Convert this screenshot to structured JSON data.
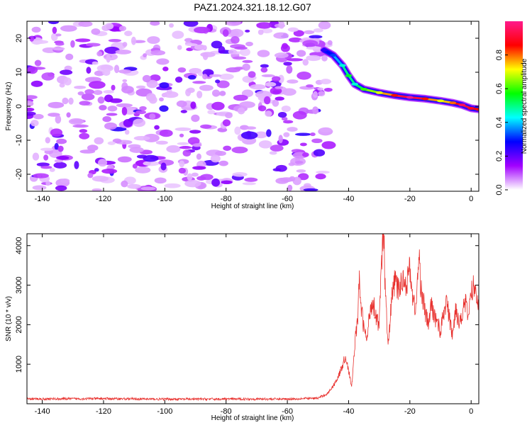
{
  "title": "PAZ1.2024.321.18.12.G07",
  "chart_data": [
    {
      "type": "heatmap",
      "xlabel": "Height of straight line (km)",
      "ylabel": "Frequency (Hz)",
      "xlim": [
        -145,
        2.5
      ],
      "ylim": [
        -25,
        25
      ],
      "xticks": [
        -140,
        -120,
        -100,
        -80,
        -60,
        -40,
        -20,
        0
      ],
      "yticks": [
        -20,
        -10,
        0,
        10,
        20
      ],
      "colorbar": {
        "label": "Normalized spectral amplitude",
        "range": [
          0.0,
          1.0
        ],
        "ticks": [
          0.0,
          0.2,
          0.4,
          0.6,
          0.8
        ],
        "colors": [
          "#ffffff",
          "#a200ff",
          "#0000ff",
          "#00ffff",
          "#00ff00",
          "#ffff00",
          "#ff0000",
          "#ff1a8c"
        ]
      },
      "noise_region": {
        "x": [
          -145,
          -46
        ],
        "y": [
          -25,
          25
        ],
        "amplitude_max": 0.25
      },
      "signal_track": [
        {
          "x": -48,
          "freq": 16.5,
          "amp": 0.25
        },
        {
          "x": -45,
          "freq": 15.0,
          "amp": 0.32
        },
        {
          "x": -42,
          "freq": 12.0,
          "amp": 0.45
        },
        {
          "x": -40,
          "freq": 9.0,
          "amp": 0.55
        },
        {
          "x": -38,
          "freq": 6.5,
          "amp": 0.45
        },
        {
          "x": -35,
          "freq": 5.0,
          "amp": 0.6
        },
        {
          "x": -30,
          "freq": 4.0,
          "amp": 0.7
        },
        {
          "x": -25,
          "freq": 3.2,
          "amp": 0.85
        },
        {
          "x": -20,
          "freq": 2.6,
          "amp": 1.0
        },
        {
          "x": -15,
          "freq": 2.2,
          "amp": 0.85
        },
        {
          "x": -10,
          "freq": 1.6,
          "amp": 0.7
        },
        {
          "x": -6,
          "freq": 1.0,
          "amp": 0.8
        },
        {
          "x": -3,
          "freq": 0.4,
          "amp": 0.95
        },
        {
          "x": 0,
          "freq": -0.6,
          "amp": 0.9
        },
        {
          "x": 2.5,
          "freq": -0.9,
          "amp": 0.85
        }
      ]
    },
    {
      "type": "line",
      "xlabel": "Height of straight line (km)",
      "ylabel": "SNR (10 * v/v)",
      "xlim": [
        -145,
        2.5
      ],
      "ylim": [
        0,
        4300
      ],
      "xticks": [
        -140,
        -120,
        -100,
        -80,
        -60,
        -40,
        -20,
        0
      ],
      "yticks": [
        1000,
        2000,
        3000,
        4000
      ],
      "series": [
        {
          "color": "#e8312e",
          "x": [
            -145,
            -120,
            -100,
            -80,
            -60,
            -50,
            -47,
            -45,
            -43,
            -41,
            -40,
            -39,
            -38,
            -37,
            -36.5,
            -36,
            -35,
            -34,
            -33,
            -32,
            -31,
            -30,
            -29,
            -28.5,
            -28,
            -27,
            -26,
            -25,
            -24,
            -23,
            -22,
            -21,
            -20,
            -19,
            -18,
            -17,
            -16.5,
            -16,
            -15,
            -14,
            -13,
            -12,
            -11,
            -10,
            -9,
            -8,
            -7,
            -6,
            -5,
            -4,
            -3,
            -2,
            -1,
            0,
            1,
            2.5
          ],
          "y": [
            120,
            130,
            115,
            120,
            120,
            140,
            250,
            450,
            750,
            1200,
            850,
            400,
            1500,
            2200,
            3100,
            2500,
            1900,
            1600,
            2400,
            2600,
            2200,
            2000,
            4000,
            4300,
            2700,
            1500,
            2600,
            3100,
            2900,
            3000,
            3200,
            3000,
            3500,
            2600,
            2400,
            3800,
            3000,
            2800,
            2300,
            2000,
            2500,
            2200,
            2100,
            1800,
            2300,
            2600,
            2100,
            1700,
            2500,
            2000,
            2300,
            2600,
            2200,
            2800,
            3000,
            2600
          ]
        }
      ]
    }
  ]
}
